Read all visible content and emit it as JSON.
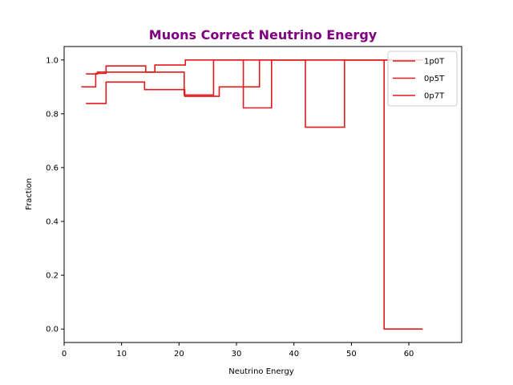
{
  "chart_data": {
    "type": "line",
    "step": true,
    "title": "Muons Correct Neutrino Energy",
    "title_color": "#800080",
    "xlabel": "Neutrino Energy",
    "ylabel": "Fraction",
    "xlim": [
      0,
      69.2
    ],
    "ylim": [
      -0.05,
      1.05
    ],
    "xticks": [
      0,
      10,
      20,
      30,
      40,
      50,
      60
    ],
    "yticks": [
      0.0,
      0.2,
      0.4,
      0.6,
      0.8,
      1.0
    ],
    "xtick_labels": [
      "0",
      "10",
      "20",
      "30",
      "40",
      "50",
      "60"
    ],
    "ytick_labels": [
      "0.0",
      "0.2",
      "0.4",
      "0.6",
      "0.8",
      "1.0"
    ],
    "legend_position": "top-right",
    "grid": false,
    "series": [
      {
        "name": "1p0T",
        "color": "#e31a1c",
        "x": [
          3.0,
          5.5,
          7.3,
          14.2,
          15.8,
          21.1,
          26.0,
          31.3,
          33.9,
          56.0,
          62.4
        ],
        "y": [
          0.9,
          0.95,
          0.978,
          0.955,
          0.981,
          1.0,
          1.0,
          1.0,
          1.0,
          1.0,
          1.0
        ]
      },
      {
        "name": "0p5T",
        "color": "#e31a1c",
        "x": [
          3.8,
          7.3,
          14.0,
          21.0,
          27.0,
          34.0,
          42.0,
          48.8,
          55.7,
          62.4
        ],
        "y": [
          0.838,
          0.918,
          0.89,
          0.865,
          0.9,
          1.0,
          0.75,
          1.0,
          0.0,
          0.0
        ]
      },
      {
        "name": "0p7T",
        "color": "#e31a1c",
        "x": [
          3.8,
          5.8,
          20.9,
          26.0,
          31.2,
          36.1,
          62.4
        ],
        "y": [
          0.948,
          0.955,
          0.87,
          1.0,
          0.822,
          1.0,
          1.0
        ]
      }
    ]
  }
}
